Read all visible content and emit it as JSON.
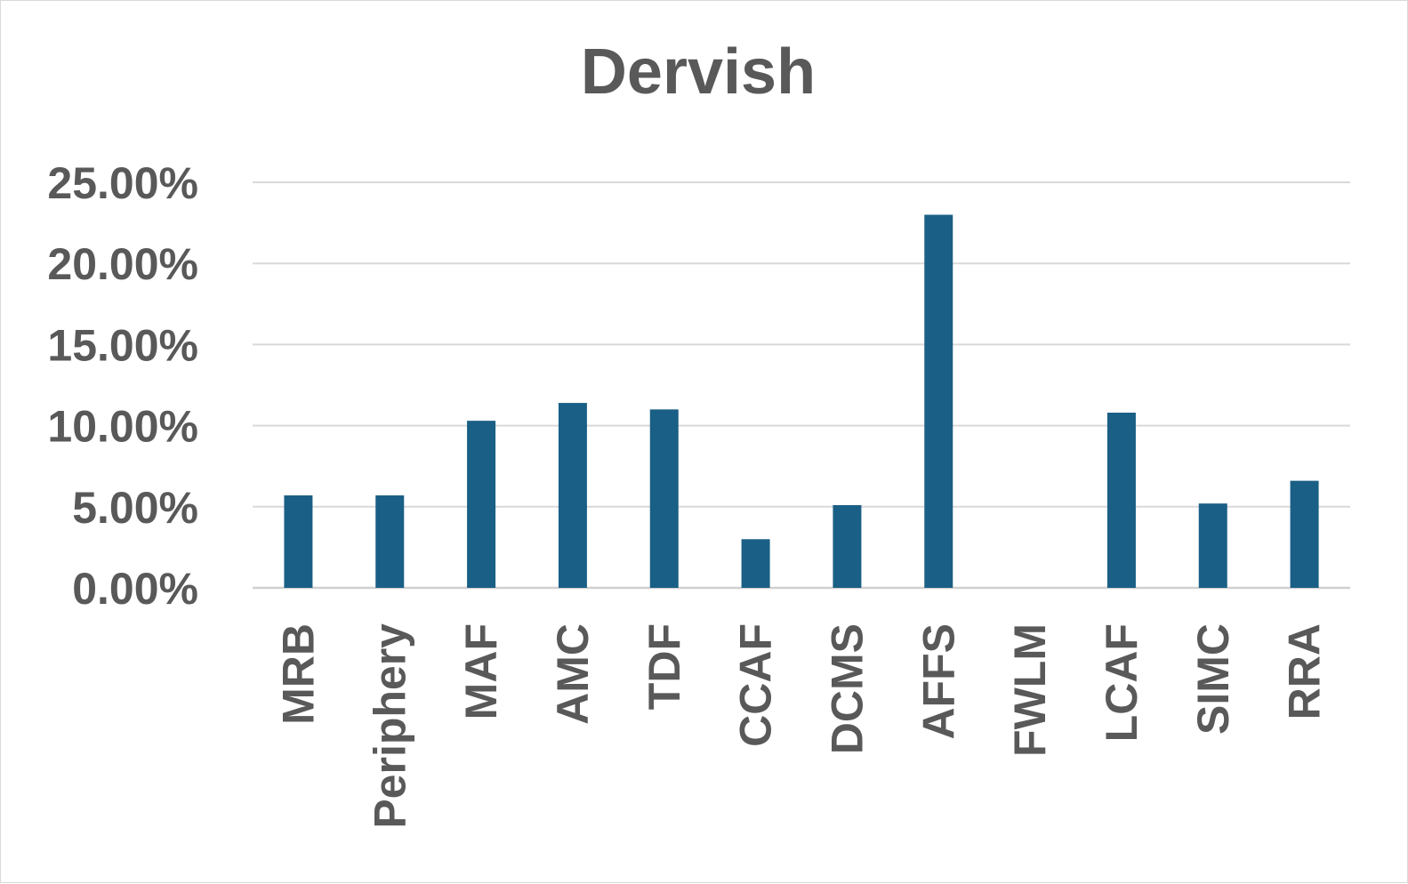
{
  "chart_data": {
    "type": "bar",
    "title": "Dervish",
    "xlabel": "",
    "ylabel": "",
    "categories": [
      "MRB",
      "Periphery",
      "MAF",
      "AMC",
      "TDF",
      "CCAF",
      "DCMS",
      "AFFS",
      "FWLM",
      "LCAF",
      "SIMC",
      "RRA"
    ],
    "values": [
      5.7,
      5.7,
      10.3,
      11.4,
      11.0,
      3.0,
      5.1,
      23.0,
      0.0,
      10.8,
      5.2,
      6.6
    ],
    "ylim": [
      0,
      25
    ],
    "yticks": [
      "0.00%",
      "5.00%",
      "10.00%",
      "15.00%",
      "20.00%",
      "25.00%"
    ],
    "bar_color": "#1a5f85",
    "grid": true,
    "legend": "none"
  }
}
